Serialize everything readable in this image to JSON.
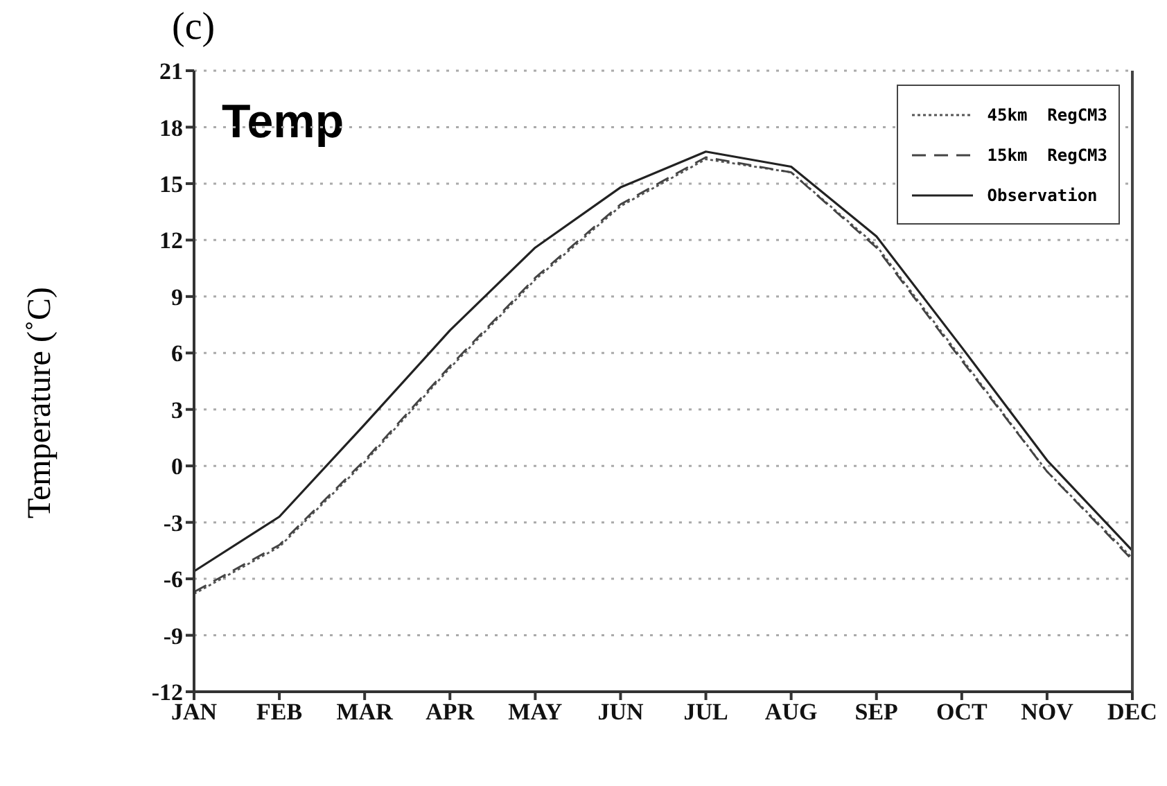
{
  "chart_data": {
    "type": "line",
    "title": "(c)",
    "ylabel": "Temperature (˚C)",
    "annotations": [
      "Temp"
    ],
    "categories": [
      "JAN",
      "FEB",
      "MAR",
      "APR",
      "MAY",
      "JUN",
      "JUL",
      "AUG",
      "SEP",
      "OCT",
      "NOV",
      "DEC"
    ],
    "series": [
      {
        "name": "45km  RegCM3",
        "color": "#555555",
        "line_style": "dotted",
        "values": [
          -6.8,
          -4.3,
          0.2,
          5.2,
          9.9,
          13.8,
          16.3,
          15.6,
          11.7,
          5.7,
          -0.3,
          -4.9
        ]
      },
      {
        "name": "15km  RegCM3",
        "color": "#444444",
        "line_style": "dashed",
        "values": [
          -6.7,
          -4.2,
          0.3,
          5.3,
          10.0,
          13.9,
          16.4,
          15.6,
          11.6,
          5.6,
          -0.3,
          -5.0
        ]
      },
      {
        "name": "Observation",
        "color": "#222222",
        "line_style": "solid",
        "values": [
          -5.6,
          -2.7,
          2.2,
          7.2,
          11.6,
          14.8,
          16.7,
          15.9,
          12.2,
          6.3,
          0.3,
          -4.5
        ]
      }
    ],
    "ylim": [
      -12,
      21
    ],
    "yticks": [
      -12,
      -9,
      -6,
      -3,
      0,
      3,
      6,
      9,
      12,
      15,
      18,
      21
    ],
    "grid": "y",
    "legend": "top right",
    "marker": "none"
  }
}
